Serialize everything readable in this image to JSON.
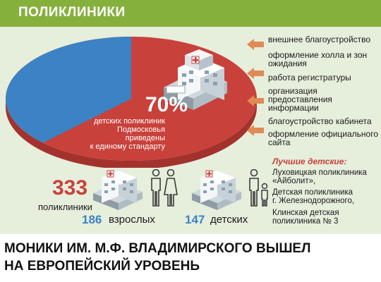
{
  "header": {
    "title": "ПОЛИКЛИНИКИ"
  },
  "pie": {
    "share_percent": "70%",
    "share_value": 70,
    "caption_lines": [
      "детских поликлиник",
      "Подмосковья приведены",
      "к единому стандарту"
    ],
    "colors": {
      "main": "#c9413b",
      "rest": "#3b83c4",
      "rim": "#a3322d"
    }
  },
  "improvements": [
    {
      "lines": [
        "внешнее благоустройство"
      ]
    },
    {
      "lines": [
        "оформление холла и зон",
        "ожидания"
      ]
    },
    {
      "lines": [
        "работа регистратуры"
      ]
    },
    {
      "lines": [
        "организация",
        "предоставления",
        "информации"
      ]
    },
    {
      "lines": [
        "благоустройство кабинета"
      ]
    },
    {
      "lines": [
        "оформление официального",
        "сайта"
      ]
    }
  ],
  "best": {
    "heading": "Лучшие детские:",
    "items": [
      {
        "lines": [
          "Луховицкая поликлиника",
          "«Айболит»,"
        ]
      },
      {
        "lines": [
          "Детская поликлиника",
          "г. Железнодорожного,"
        ]
      },
      {
        "lines": [
          "Клинская детская",
          "поликлиника № 3"
        ]
      }
    ]
  },
  "stats": {
    "total_number": "333",
    "total_label": "поликлиники",
    "adult_number": "186",
    "adult_label": "взрослых",
    "child_number": "147",
    "child_label": "детских"
  },
  "headline": {
    "lines": [
      "МОНИКИ ИМ. М.Ф. ВЛАДИМИРСКОГО ВЫШЕЛ",
      "НА ЕВРОПЕЙСКИЙ УРОВЕНЬ"
    ]
  },
  "colors": {
    "accent_green": "#86b03c",
    "accent_red": "#c9413b",
    "accent_blue": "#3b83c4",
    "arrow": "#e08a55"
  },
  "icons": [
    "hospital-building-icon",
    "arrow-left-icon",
    "man-icon",
    "woman-icon",
    "adult-child-icon"
  ]
}
